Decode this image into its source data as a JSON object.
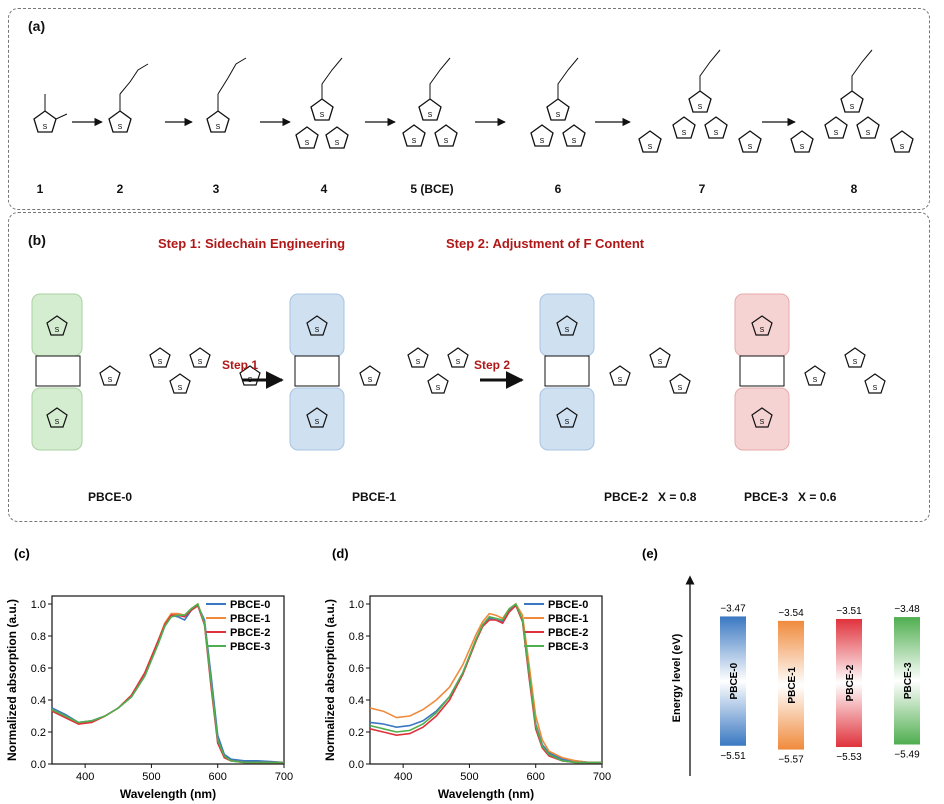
{
  "panel_a": {
    "label": "(a)",
    "compounds": [
      "1",
      "2",
      "3",
      "4",
      "5 (BCE)",
      "6",
      "7",
      "8"
    ]
  },
  "panel_b": {
    "label": "(b)",
    "step1_title": "Step 1: Sidechain Engineering",
    "step2_title": "Step 2: Adjustment of F Content",
    "step1_arrow": "Step 1",
    "step2_arrow": "Step 2",
    "polymers": {
      "p0": "PBCE-0",
      "p1": "PBCE-1",
      "p2": "PBCE-2   X = 0.8",
      "p3": "PBCE-3   X = 0.6"
    }
  },
  "colors": {
    "PBCE-0": "#3a78c2",
    "PBCE-1": "#f08a3c",
    "PBCE-2": "#e0323c",
    "PBCE-3": "#4fae4f"
  },
  "chart_data": [
    {
      "id": "c",
      "label": "(c)",
      "type": "line",
      "xlabel": "Wavelength (nm)",
      "ylabel": "Normalized absorption (a.u.)",
      "xlim": [
        350,
        700
      ],
      "ylim": [
        0.0,
        1.05
      ],
      "xticks": [
        "400",
        "500",
        "600",
        "700"
      ],
      "yticks": [
        "0.0",
        "0.2",
        "0.4",
        "0.6",
        "0.8",
        "1.0"
      ],
      "x": [
        350,
        370,
        390,
        410,
        430,
        450,
        470,
        490,
        510,
        520,
        530,
        540,
        550,
        560,
        570,
        580,
        590,
        600,
        610,
        620,
        640,
        660,
        680,
        700
      ],
      "series": [
        {
          "name": "PBCE-0",
          "values": [
            0.35,
            0.31,
            0.26,
            0.27,
            0.3,
            0.35,
            0.42,
            0.55,
            0.75,
            0.86,
            0.93,
            0.92,
            0.9,
            0.96,
            0.99,
            0.9,
            0.55,
            0.18,
            0.06,
            0.03,
            0.02,
            0.02,
            0.015,
            0.01
          ]
        },
        {
          "name": "PBCE-1",
          "values": [
            0.34,
            0.3,
            0.25,
            0.26,
            0.3,
            0.35,
            0.43,
            0.57,
            0.77,
            0.88,
            0.94,
            0.94,
            0.93,
            0.97,
            1.0,
            0.88,
            0.5,
            0.14,
            0.04,
            0.02,
            0.01,
            0.01,
            0.01,
            0.01
          ]
        },
        {
          "name": "PBCE-2",
          "values": [
            0.33,
            0.29,
            0.25,
            0.26,
            0.3,
            0.35,
            0.43,
            0.57,
            0.77,
            0.87,
            0.93,
            0.93,
            0.92,
            0.96,
            0.99,
            0.87,
            0.48,
            0.13,
            0.04,
            0.02,
            0.01,
            0.01,
            0.01,
            0.01
          ]
        },
        {
          "name": "PBCE-3",
          "values": [
            0.34,
            0.3,
            0.26,
            0.27,
            0.3,
            0.35,
            0.42,
            0.55,
            0.75,
            0.86,
            0.92,
            0.93,
            0.93,
            0.97,
            1.0,
            0.88,
            0.51,
            0.15,
            0.05,
            0.02,
            0.01,
            0.01,
            0.01,
            0.01
          ]
        }
      ],
      "legend": "top-right"
    },
    {
      "id": "d",
      "label": "(d)",
      "type": "line",
      "xlabel": "Wavelength (nm)",
      "ylabel": "Normalized absorption (a.u.)",
      "xlim": [
        350,
        700
      ],
      "ylim": [
        0.0,
        1.05
      ],
      "xticks": [
        "400",
        "500",
        "600",
        "700"
      ],
      "yticks": [
        "0.0",
        "0.2",
        "0.4",
        "0.6",
        "0.8",
        "1.0"
      ],
      "x": [
        350,
        370,
        390,
        410,
        430,
        450,
        470,
        490,
        510,
        520,
        530,
        540,
        550,
        560,
        570,
        580,
        590,
        600,
        610,
        620,
        640,
        660,
        680,
        700
      ],
      "series": [
        {
          "name": "PBCE-0",
          "values": [
            0.26,
            0.25,
            0.23,
            0.24,
            0.27,
            0.33,
            0.42,
            0.57,
            0.78,
            0.87,
            0.91,
            0.9,
            0.89,
            0.96,
            1.0,
            0.9,
            0.55,
            0.25,
            0.12,
            0.07,
            0.03,
            0.02,
            0.01,
            0.01
          ]
        },
        {
          "name": "PBCE-1",
          "values": [
            0.35,
            0.33,
            0.29,
            0.3,
            0.34,
            0.4,
            0.48,
            0.62,
            0.81,
            0.89,
            0.94,
            0.93,
            0.91,
            0.97,
            1.0,
            0.93,
            0.62,
            0.3,
            0.15,
            0.08,
            0.04,
            0.02,
            0.01,
            0.01
          ]
        },
        {
          "name": "PBCE-2",
          "values": [
            0.22,
            0.2,
            0.18,
            0.19,
            0.23,
            0.3,
            0.4,
            0.56,
            0.77,
            0.86,
            0.9,
            0.9,
            0.88,
            0.95,
            0.99,
            0.89,
            0.54,
            0.22,
            0.1,
            0.05,
            0.02,
            0.01,
            0.01,
            0.01
          ]
        },
        {
          "name": "PBCE-3",
          "values": [
            0.24,
            0.22,
            0.2,
            0.21,
            0.25,
            0.32,
            0.42,
            0.57,
            0.78,
            0.87,
            0.92,
            0.91,
            0.9,
            0.97,
            1.0,
            0.9,
            0.57,
            0.24,
            0.11,
            0.06,
            0.02,
            0.01,
            0.01,
            0.01
          ]
        }
      ],
      "legend": "top-right"
    },
    {
      "id": "e",
      "label": "(e)",
      "type": "bar",
      "ylabel": "Energy level (eV)",
      "categories": [
        "PBCE-0",
        "PBCE-1",
        "PBCE-2",
        "PBCE-3"
      ],
      "lumo": [
        -3.47,
        -3.54,
        -3.51,
        -3.48
      ],
      "homo": [
        -5.51,
        -5.57,
        -5.53,
        -5.49
      ],
      "lumo_labels": [
        "−3.47",
        "−3.54",
        "−3.51",
        "−3.48"
      ],
      "homo_labels": [
        "−5.51",
        "−5.57",
        "−5.53",
        "−5.49"
      ]
    }
  ]
}
